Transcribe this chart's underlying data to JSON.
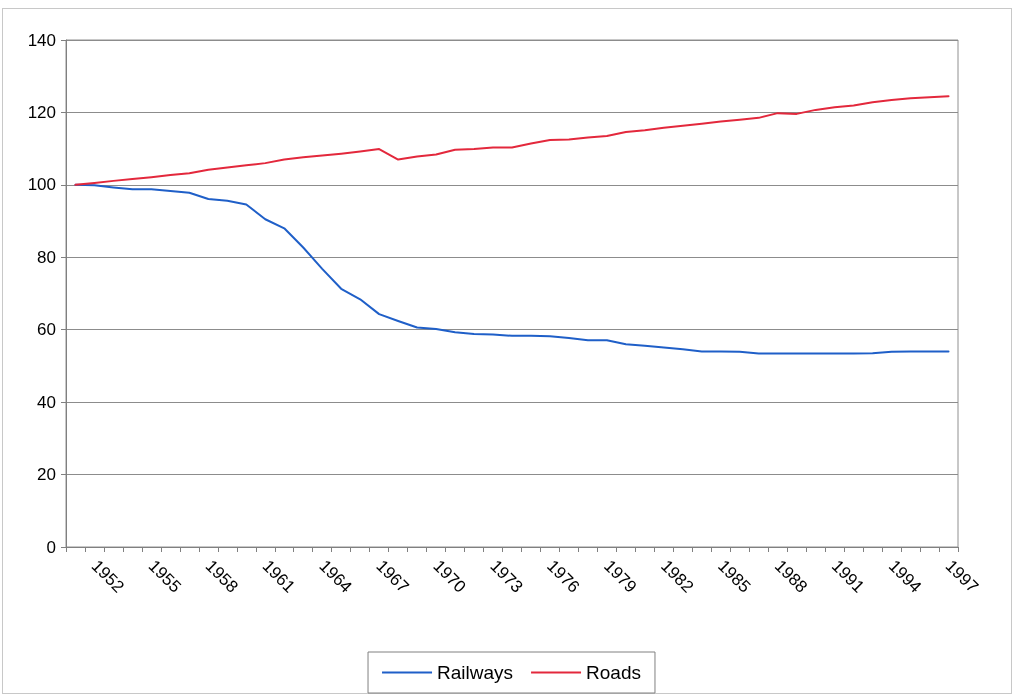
{
  "chart_data": {
    "type": "line",
    "categories": [
      null,
      "1952",
      null,
      null,
      "1955",
      null,
      null,
      "1958",
      null,
      null,
      "1961",
      null,
      null,
      "1964",
      null,
      null,
      "1967",
      null,
      null,
      "1970",
      null,
      null,
      "1973",
      null,
      null,
      "1976",
      null,
      null,
      "1979",
      null,
      null,
      "1982",
      null,
      null,
      "1985",
      null,
      null,
      "1988",
      null,
      null,
      "1991",
      null,
      null,
      "1994",
      null,
      null,
      "1997"
    ],
    "series": [
      {
        "name": "Railways",
        "color": "#1f5fc8",
        "values": [
          100,
          99.9,
          99.3,
          98.8,
          98.8,
          98.3,
          97.8,
          96.1,
          95.6,
          94.6,
          90.5,
          88.0,
          82.7,
          76.8,
          71.3,
          68.4,
          64.3,
          62.4,
          60.6,
          60.2,
          59.3,
          58.8,
          58.7,
          58.3,
          58.3,
          58.2,
          57.7,
          57.1,
          57.1,
          56.0,
          55.6,
          55.1,
          54.6,
          54.0,
          54.0,
          53.9,
          53.4,
          53.4,
          53.4,
          53.4,
          53.4,
          53.4,
          53.5,
          53.9,
          54.0,
          54.0,
          54.0
        ]
      },
      {
        "name": "Roads",
        "color": "#e3283c",
        "values": [
          100,
          100.5,
          101.1,
          101.6,
          102.1,
          102.7,
          103.2,
          104.2,
          104.8,
          105.4,
          106.0,
          107.0,
          107.6,
          108.1,
          108.6,
          109.2,
          109.9,
          107.0,
          107.8,
          108.4,
          109.7,
          109.9,
          110.3,
          110.3,
          111.4,
          112.4,
          112.5,
          113.1,
          113.5,
          114.6,
          115.1,
          115.8,
          116.3,
          116.9,
          117.5,
          118.0,
          118.5,
          119.8,
          119.6,
          120.7,
          121.4,
          121.9,
          122.8,
          123.4,
          123.9,
          124.2,
          124.5
        ]
      }
    ],
    "ylim": [
      0,
      140
    ],
    "yticks": [
      0,
      20,
      40,
      60,
      80,
      100,
      120,
      140
    ],
    "grid": "y",
    "legend": "bottom",
    "marker": "none",
    "line_style": "solid"
  }
}
